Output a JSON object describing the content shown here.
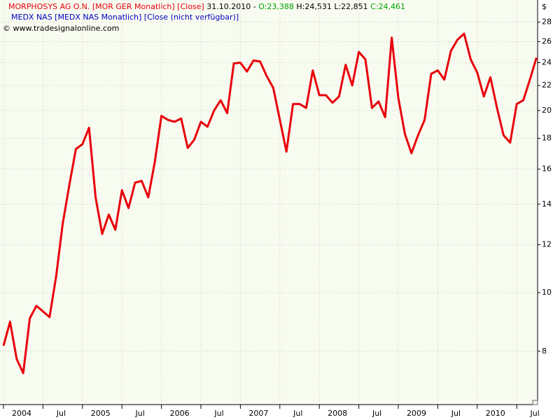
{
  "chart_data": {
    "type": "line",
    "header": {
      "date": "31.10.2010 - ",
      "open": "O:23,388",
      "high_low": "H:24,531 L:22,851",
      "close": "C:24,461",
      "second_series": "MEDX NAS [MEDX NAS  Monatlich] [Close (nicht verfügbar)]",
      "copyright": "© www.tradesignalonline.com"
    },
    "y_label": "$",
    "categories": [
      "2004",
      null,
      null,
      null,
      null,
      null,
      "Jul",
      null,
      null,
      null,
      null,
      null,
      "2005",
      null,
      null,
      null,
      null,
      null,
      "Jul",
      null,
      null,
      null,
      null,
      null,
      "2006",
      null,
      null,
      null,
      null,
      null,
      "Jul",
      null,
      null,
      null,
      null,
      null,
      "2007",
      null,
      null,
      null,
      null,
      null,
      "Jul",
      null,
      null,
      null,
      null,
      null,
      "2008",
      null,
      null,
      null,
      null,
      null,
      "Jul",
      null,
      null,
      null,
      null,
      null,
      "2009",
      null,
      null,
      null,
      null,
      null,
      "Jul",
      null,
      null,
      null,
      null,
      null,
      "2010",
      null,
      null,
      null,
      null,
      null,
      "Jul",
      null,
      null,
      null
    ],
    "series": [
      {
        "name": "MORPHOSYS AG O.N. [MOR GER  Monatlich] [Close]",
        "color": "#e8000b",
        "values": [
          8.17,
          8.95,
          7.77,
          7.36,
          9.07,
          9.51,
          9.31,
          9.11,
          10.64,
          13.0,
          15.05,
          17.27,
          17.6,
          18.73,
          14.37,
          12.5,
          13.46,
          12.7,
          14.77,
          13.8,
          15.2,
          15.3,
          14.37,
          16.46,
          19.6,
          19.3,
          19.16,
          19.4,
          17.35,
          17.9,
          19.16,
          18.8,
          20.0,
          20.8,
          19.8,
          23.93,
          24.0,
          23.2,
          24.2,
          24.1,
          22.8,
          21.8,
          19.3,
          17.1,
          20.5,
          20.5,
          20.2,
          23.3,
          21.2,
          21.2,
          20.6,
          21.1,
          23.8,
          22.0,
          25.0,
          24.3,
          20.2,
          20.7,
          19.5,
          26.4,
          21.0,
          18.3,
          17.0,
          18.2,
          19.3,
          23.0,
          23.3,
          22.5,
          25.1,
          26.2,
          26.8,
          24.3,
          23.1,
          21.1,
          22.7,
          20.2,
          18.2,
          17.7,
          20.5,
          20.8,
          22.5,
          24.46
        ]
      }
    ],
    "ylim": [
      6.53,
      30.3
    ],
    "yticks": [
      8,
      10,
      12,
      14,
      16,
      18,
      20,
      22,
      24,
      26,
      28
    ],
    "log_scale": true,
    "grid": true
  }
}
